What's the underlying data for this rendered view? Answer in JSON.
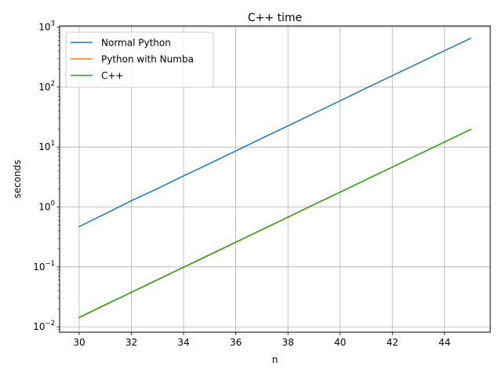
{
  "chart_data": {
    "type": "line",
    "title": "C++ time",
    "xlabel": "n",
    "ylabel": "seconds",
    "xlim": [
      29.25,
      45.75
    ],
    "ylim_log10": [
      -2.09,
      3.02
    ],
    "y_scale": "log",
    "grid": true,
    "legend_position": "top-left",
    "x_ticks": [
      30,
      32,
      34,
      36,
      38,
      40,
      42,
      44
    ],
    "y_ticks": [
      {
        "exp": -2,
        "base": "10",
        "sup": "−2"
      },
      {
        "exp": -1,
        "base": "10",
        "sup": "−1"
      },
      {
        "exp": 0,
        "base": "10",
        "sup": "0"
      },
      {
        "exp": 1,
        "base": "10",
        "sup": "1"
      },
      {
        "exp": 2,
        "base": "10",
        "sup": "2"
      },
      {
        "exp": 3,
        "base": "10",
        "sup": "3"
      }
    ],
    "x": [
      30,
      31,
      32,
      33,
      34,
      35,
      36,
      37,
      38,
      39,
      40,
      41,
      42,
      43,
      44,
      45
    ],
    "series": [
      {
        "name": "Normal Python",
        "color": "#1f77b4",
        "values": [
          0.47,
          0.77,
          1.27,
          2.02,
          3.3,
          5.3,
          8.6,
          14.0,
          22.5,
          36.5,
          59.0,
          96.0,
          155,
          250,
          405,
          650
        ]
      },
      {
        "name": "Python with Numba",
        "color": "#ff7f0e",
        "values": [
          0.0142,
          0.0231,
          0.0374,
          0.0605,
          0.098,
          0.158,
          0.256,
          0.415,
          0.672,
          1.09,
          1.76,
          2.85,
          4.61,
          7.47,
          12.1,
          19.6
        ]
      },
      {
        "name": "C++",
        "color": "#2ca02c",
        "values": [
          0.0144,
          0.0234,
          0.0378,
          0.0612,
          0.099,
          0.16,
          0.259,
          0.419,
          0.678,
          1.1,
          1.77,
          2.87,
          4.64,
          7.5,
          12.1,
          19.7
        ]
      }
    ]
  }
}
